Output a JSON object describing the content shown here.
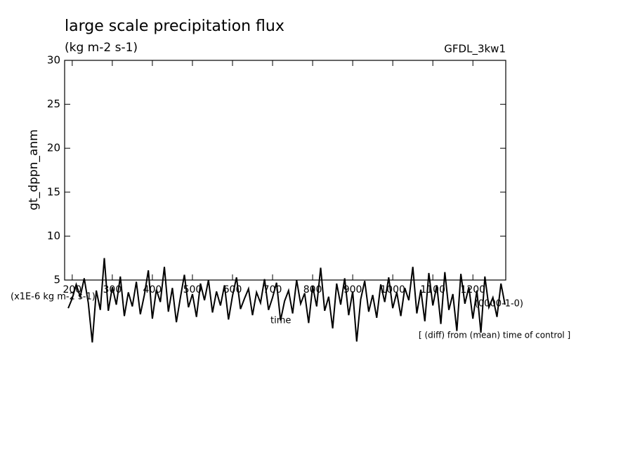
{
  "chart_data": {
    "type": "line",
    "title": "large scale precipitation flux",
    "subtitle": "(kg m-2 s-1)",
    "dataset": "GFDL_3kw1",
    "y_label": "gt_dppn_anm",
    "unit_note": "(x1E-6 kg m-2 s-1)",
    "x_label": "time",
    "x_unit_note": "(0000-1-0)",
    "note": "[ (diff) from (mean) time of control ]",
    "x": [
      190,
      200,
      210,
      220,
      230,
      240,
      250,
      260,
      270,
      280,
      290,
      300,
      310,
      320,
      330,
      340,
      350,
      360,
      370,
      380,
      390,
      400,
      410,
      420,
      430,
      440,
      450,
      460,
      470,
      480,
      490,
      500,
      510,
      520,
      530,
      540,
      550,
      560,
      570,
      580,
      590,
      600,
      610,
      620,
      630,
      640,
      650,
      660,
      670,
      680,
      690,
      700,
      710,
      720,
      730,
      740,
      750,
      760,
      770,
      780,
      790,
      800,
      810,
      820,
      830,
      840,
      850,
      860,
      870,
      880,
      890,
      900,
      910,
      920,
      930,
      940,
      950,
      960,
      970,
      980,
      990,
      1000,
      1010,
      1020,
      1030,
      1040,
      1050,
      1060,
      1070,
      1080,
      1090,
      1100,
      1110,
      1120,
      1130,
      1140,
      1150,
      1160,
      1170,
      1180,
      1190,
      1200,
      1210,
      1220,
      1230,
      1240,
      1250,
      1260,
      1270,
      1280
    ],
    "series": [
      {
        "color": "#000000",
        "values": [
          1.8,
          2.9,
          4.5,
          3.1,
          5.2,
          2.4,
          -2.1,
          3.8,
          1.6,
          7.5,
          1.5,
          4.2,
          2.2,
          5.4,
          0.9,
          3.6,
          2.0,
          4.8,
          1.1,
          3.3,
          6.1,
          0.6,
          3.9,
          2.5,
          6.5,
          1.4,
          4.1,
          0.2,
          3.0,
          5.6,
          1.9,
          3.4,
          0.8,
          4.6,
          2.7,
          5.0,
          1.3,
          3.7,
          2.1,
          4.4,
          0.5,
          3.2,
          5.3,
          1.7,
          2.9,
          4.0,
          1.0,
          3.6,
          2.4,
          5.1,
          1.6,
          3.0,
          4.7,
          0.4,
          2.6,
          3.8,
          1.2,
          5.0,
          2.3,
          3.5,
          0.1,
          4.3,
          2.0,
          6.4,
          1.5,
          3.1,
          -0.5,
          4.6,
          2.2,
          5.2,
          1.0,
          3.7,
          -2.0,
          2.8,
          4.9,
          1.4,
          3.3,
          0.7,
          4.5,
          2.5,
          5.3,
          1.8,
          3.6,
          0.9,
          4.1,
          2.7,
          6.5,
          1.2,
          3.9,
          0.3,
          5.8,
          2.1,
          4.4,
          0.0,
          5.9,
          1.6,
          3.4,
          -0.8,
          5.7,
          2.3,
          4.2,
          0.6,
          3.8,
          -1.0,
          5.4,
          1.9,
          3.0,
          0.8,
          4.6,
          2.2
        ]
      }
    ],
    "xlim": [
      181,
      1282
    ],
    "ylim": [
      5,
      30
    ],
    "xticks": [
      200,
      300,
      400,
      500,
      600,
      700,
      800,
      900,
      1000,
      1100,
      1200
    ],
    "yticks": [
      5,
      10,
      15,
      20,
      25,
      30
    ]
  }
}
